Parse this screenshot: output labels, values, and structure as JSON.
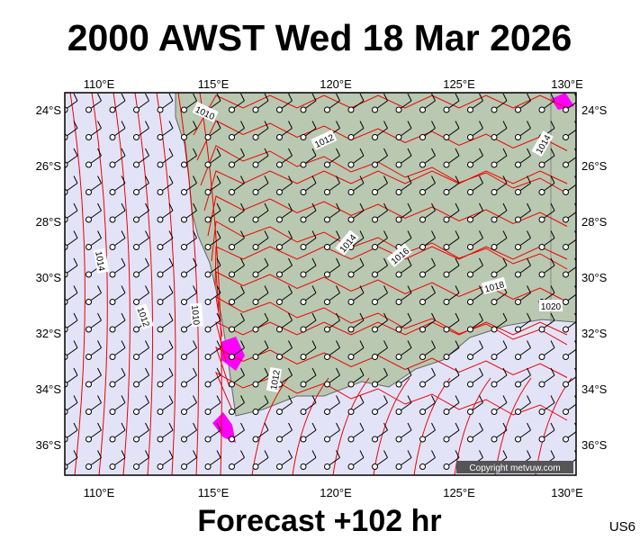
{
  "header": {
    "title": "2000 AWST Wed 18 Mar 2026"
  },
  "map": {
    "lon_labels": [
      "110°E",
      "115°E",
      "120°E",
      "125°E",
      "130°E"
    ],
    "lat_labels": [
      "24°S",
      "26°S",
      "28°S",
      "30°S",
      "32°S",
      "34°S",
      "36°S"
    ],
    "isobar_labels": [
      "1010",
      "1012",
      "1014",
      "1014",
      "1016",
      "1018",
      "1020",
      "1014",
      "1012",
      "1010",
      "1012"
    ],
    "copyright": "Copyright metvuw.com"
  },
  "footer": {
    "forecast": "Forecast +102 hr",
    "code": "US6"
  }
}
